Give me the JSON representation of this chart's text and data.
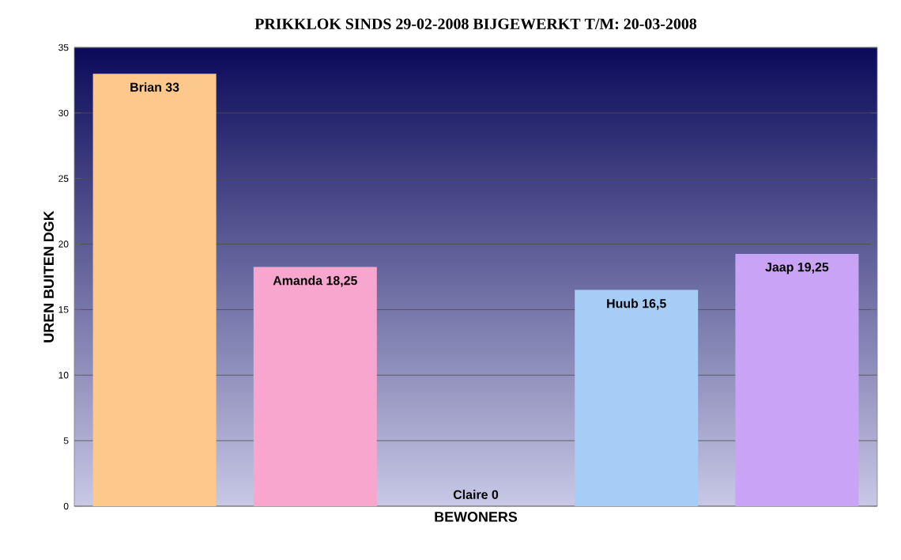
{
  "chart_data": {
    "type": "bar",
    "title": "PRIKKLOK SINDS 29-02-2008 BIJGEWERKT T/M: 20-03-2008",
    "xlabel": "BEWONERS",
    "ylabel": "UREN BUITEN DGK",
    "categories": [
      null,
      null,
      null,
      null,
      null
    ],
    "values": [
      33,
      18.25,
      0,
      16.5,
      19.25
    ],
    "value_labels": [
      "Brian 33",
      "Amanda 18,25",
      "Claire 0",
      "Huub 16,5",
      "Jaap 19,25"
    ],
    "colors": [
      "#fcc88c",
      "#f9a6cf",
      "#e0e0e0",
      "#a6cdf5",
      "#c9a3f5"
    ],
    "ylim": [
      0,
      35
    ],
    "yticks": [
      0,
      5,
      10,
      15,
      20,
      25,
      30,
      35
    ],
    "grid": "y"
  }
}
